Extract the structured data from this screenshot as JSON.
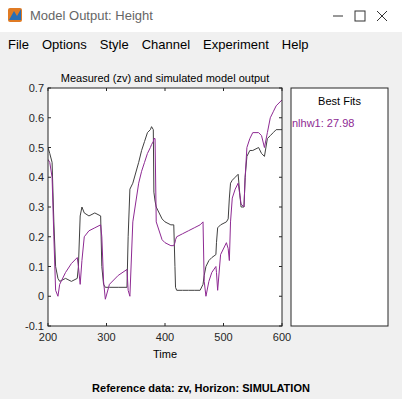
{
  "window": {
    "title": "Model Output: Height",
    "menu": [
      "File",
      "Options",
      "Style",
      "Channel",
      "Experiment",
      "Help"
    ],
    "best_fits": {
      "title": "Best Fits",
      "entries": [
        "nlhw1: 27.98"
      ]
    },
    "footer": "Reference data:  zv, Horizon: SIMULATION"
  },
  "chart_data": {
    "type": "line",
    "title": "Measured (zv) and simulated model output",
    "x_label": "Time",
    "x": [
      200,
      203,
      207,
      210,
      213,
      217,
      220,
      230,
      240,
      250,
      252,
      255,
      258,
      262,
      270,
      280,
      290,
      292,
      295,
      298,
      305,
      320,
      335,
      337,
      340,
      345,
      355,
      360,
      365,
      370,
      375,
      377,
      380,
      381,
      383,
      385,
      395,
      400,
      410,
      415,
      417,
      418,
      420,
      430,
      440,
      450,
      460,
      465,
      467,
      470,
      475,
      480,
      487,
      488,
      490,
      495,
      505,
      508,
      510,
      512,
      515,
      520,
      525,
      528,
      530,
      535,
      537,
      540,
      545,
      550,
      560,
      565,
      570,
      575,
      580,
      585,
      590,
      600
    ],
    "series": [
      {
        "color": "#404040",
        "values": [
          0.5,
          0.48,
          0.45,
          0.25,
          0.1,
          0.06,
          0.05,
          0.06,
          0.05,
          0.06,
          0.1,
          0.27,
          0.3,
          0.28,
          0.27,
          0.28,
          0.27,
          0.1,
          0.04,
          0.03,
          0.03,
          0.03,
          0.03,
          0.2,
          0.36,
          0.38,
          0.45,
          0.49,
          0.52,
          0.55,
          0.56,
          0.57,
          0.56,
          0.35,
          0.32,
          0.3,
          0.26,
          0.25,
          0.24,
          0.24,
          0.1,
          0.03,
          0.02,
          0.02,
          0.02,
          0.02,
          0.02,
          0.04,
          0.07,
          0.1,
          0.12,
          0.13,
          0.14,
          0.18,
          0.23,
          0.24,
          0.25,
          0.26,
          0.33,
          0.38,
          0.39,
          0.4,
          0.41,
          0.34,
          0.3,
          0.3,
          0.4,
          0.47,
          0.49,
          0.49,
          0.5,
          0.48,
          0.47,
          0.53,
          0.54,
          0.55,
          0.56,
          0.56
        ]
      },
      {
        "color": "#8e2a93",
        "values": [
          0.46,
          0.45,
          0.4,
          0.2,
          0.02,
          0.0,
          0.04,
          0.08,
          0.11,
          0.13,
          0.1,
          0.04,
          0.12,
          0.2,
          0.22,
          0.23,
          0.24,
          0.2,
          0.05,
          -0.01,
          0.04,
          0.07,
          0.09,
          0.02,
          0.0,
          0.25,
          0.38,
          0.42,
          0.45,
          0.48,
          0.5,
          0.51,
          0.52,
          0.53,
          0.53,
          0.25,
          0.19,
          0.18,
          0.17,
          0.17,
          0.18,
          0.19,
          0.2,
          0.21,
          0.22,
          0.23,
          0.24,
          0.25,
          0.05,
          0.0,
          0.05,
          0.08,
          0.1,
          0.08,
          0.02,
          0.14,
          0.18,
          0.16,
          0.12,
          0.25,
          0.33,
          0.36,
          0.38,
          0.34,
          0.31,
          0.3,
          0.4,
          0.5,
          0.53,
          0.55,
          0.55,
          0.54,
          0.5,
          0.55,
          0.6,
          0.62,
          0.64,
          0.66
        ]
      }
    ],
    "xlim": [
      200,
      600
    ],
    "xticks": [
      200,
      300,
      400,
      500,
      600
    ],
    "ylim": [
      -0.1,
      0.7
    ],
    "yticks": [
      -0.1,
      0,
      0.1,
      0.2,
      0.3,
      0.4,
      0.5,
      0.6,
      0.7
    ]
  }
}
